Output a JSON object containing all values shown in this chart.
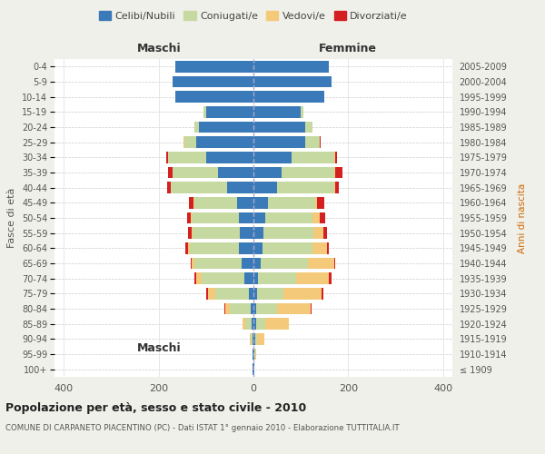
{
  "age_groups": [
    "100+",
    "95-99",
    "90-94",
    "85-89",
    "80-84",
    "75-79",
    "70-74",
    "65-69",
    "60-64",
    "55-59",
    "50-54",
    "45-49",
    "40-44",
    "35-39",
    "30-34",
    "25-29",
    "20-24",
    "15-19",
    "10-14",
    "5-9",
    "0-4"
  ],
  "birth_years": [
    "≤ 1909",
    "1910-1914",
    "1915-1919",
    "1920-1924",
    "1925-1929",
    "1930-1934",
    "1935-1939",
    "1940-1944",
    "1945-1949",
    "1950-1954",
    "1955-1959",
    "1960-1964",
    "1965-1969",
    "1970-1974",
    "1975-1979",
    "1980-1984",
    "1985-1989",
    "1990-1994",
    "1995-1999",
    "2000-2004",
    "2005-2009"
  ],
  "males": {
    "celibi": [
      1,
      1,
      2,
      3,
      5,
      10,
      20,
      25,
      30,
      28,
      30,
      35,
      55,
      75,
      100,
      120,
      115,
      100,
      165,
      170,
      165
    ],
    "coniugati": [
      0,
      1,
      3,
      15,
      45,
      70,
      90,
      100,
      105,
      100,
      100,
      90,
      120,
      95,
      80,
      25,
      10,
      5,
      0,
      0,
      0
    ],
    "vedovi": [
      0,
      0,
      2,
      5,
      10,
      15,
      10,
      5,
      3,
      2,
      2,
      2,
      0,
      0,
      0,
      2,
      0,
      0,
      0,
      0,
      0
    ],
    "divorziati": [
      0,
      0,
      0,
      0,
      2,
      5,
      5,
      3,
      5,
      8,
      8,
      10,
      8,
      10,
      5,
      0,
      0,
      0,
      0,
      0,
      0
    ]
  },
  "females": {
    "nubili": [
      1,
      2,
      3,
      5,
      5,
      8,
      10,
      15,
      20,
      22,
      25,
      30,
      50,
      60,
      80,
      110,
      110,
      100,
      150,
      165,
      160
    ],
    "coniugate": [
      0,
      1,
      5,
      20,
      45,
      55,
      80,
      100,
      105,
      105,
      100,
      100,
      120,
      110,
      90,
      30,
      15,
      5,
      0,
      0,
      0
    ],
    "vedove": [
      1,
      3,
      15,
      50,
      70,
      80,
      70,
      55,
      30,
      20,
      15,
      5,
      3,
      2,
      2,
      0,
      0,
      0,
      0,
      0,
      0
    ],
    "divorziate": [
      0,
      0,
      0,
      0,
      2,
      5,
      5,
      3,
      5,
      8,
      12,
      15,
      8,
      15,
      5,
      2,
      0,
      0,
      0,
      0,
      0
    ]
  },
  "colors": {
    "celibi": "#3a7ab8",
    "coniugati": "#c5d9a0",
    "vedovi": "#f5c97a",
    "divorziati": "#d42020"
  },
  "xlim": 420,
  "title": "Popolazione per età, sesso e stato civile - 2010",
  "subtitle": "COMUNE DI CARPANETO PIACENTINO (PC) - Dati ISTAT 1° gennaio 2010 - Elaborazione TUTTITALIA.IT",
  "ylabel": "Fasce di età",
  "ylabel_right": "Anni di nascita",
  "xlabel_maschi": "Maschi",
  "xlabel_femmine": "Femmine",
  "bg_color": "#f0f0ea",
  "plot_bg": "#ffffff"
}
